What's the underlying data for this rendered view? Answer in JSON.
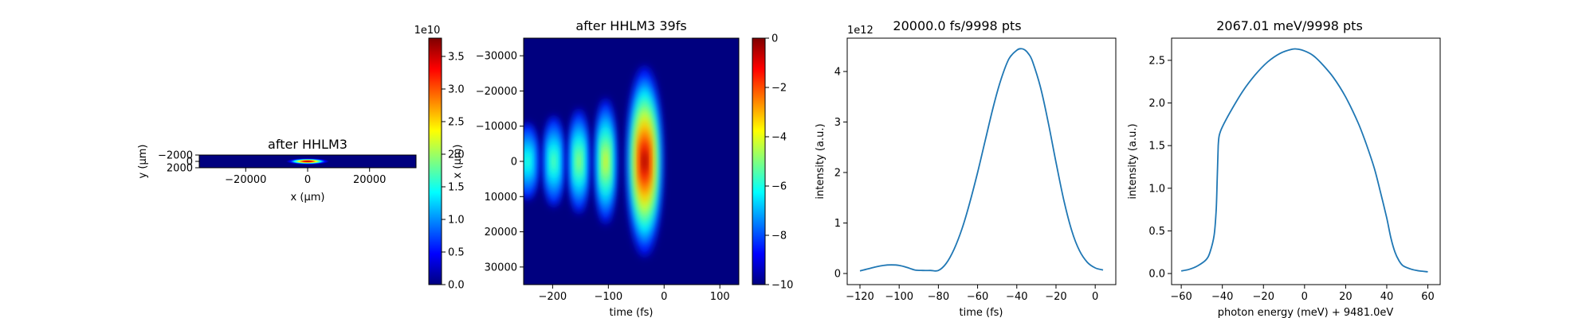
{
  "colors": {
    "line": "#1f77b4",
    "jet": [
      "#00007f",
      "#0000ff",
      "#007fff",
      "#00ffff",
      "#7fff7f",
      "#ffff00",
      "#ff7f00",
      "#ff0000",
      "#7f0000"
    ]
  },
  "chart_data": [
    {
      "type": "heatmap",
      "title": "after HHLM3",
      "xlabel": "x ($\\mu$m)",
      "ylabel": "y ($\\mu$m)",
      "xlim": [
        -35000,
        35000
      ],
      "ylim": [
        2000,
        -2000
      ],
      "x_ticks": [
        -20000,
        0,
        20000
      ],
      "y_ticks": [
        -2000,
        0,
        2000
      ],
      "x_tick_labels": [
        "−20000",
        "0",
        "20000"
      ],
      "y_tick_labels": [
        "−2000",
        "0",
        "2000"
      ],
      "spot": {
        "center_x": 0,
        "center_y": 0,
        "fwhm_x": 6000,
        "fwhm_y": 300
      },
      "colorbar": {
        "range": [
          0,
          37800000000
        ],
        "ticks": [
          0,
          5000000000,
          10000000000,
          15000000000,
          20000000000,
          25000000000,
          30000000000,
          35000000000
        ],
        "tick_labels": [
          "0.0",
          "0.5",
          "1.0",
          "1.5",
          "2.0",
          "2.5",
          "3.0",
          "3.5"
        ],
        "offset_text": "1e10"
      }
    },
    {
      "type": "heatmap",
      "title": "after HHLM3 39fs",
      "xlabel": "time (fs)",
      "ylabel": "x ($\\mu$m)",
      "xlim": [
        -252,
        134
      ],
      "ylim": [
        35000,
        -35000
      ],
      "x_ticks": [
        -200,
        -100,
        0,
        100
      ],
      "y_ticks": [
        -30000,
        -20000,
        -10000,
        0,
        10000,
        20000,
        30000
      ],
      "x_tick_labels": [
        "−200",
        "−100",
        "0",
        "100"
      ],
      "y_tick_labels": [
        "−30000",
        "−20000",
        "−10000",
        "0",
        "10000",
        "20000",
        "30000"
      ],
      "lobes": [
        {
          "t": -245,
          "width_t": 18,
          "half_x": 11000,
          "peak": -5.5
        },
        {
          "t": -198,
          "width_t": 17,
          "half_x": 13000,
          "peak": -5.0
        },
        {
          "t": -153,
          "width_t": 17,
          "half_x": 15000,
          "peak": -4.3
        },
        {
          "t": -105,
          "width_t": 18,
          "half_x": 18000,
          "peak": -3.5
        },
        {
          "t": -35,
          "width_t": 32,
          "half_x": 27000,
          "peak": 0
        }
      ],
      "colorbar": {
        "range": [
          -10,
          0
        ],
        "ticks": [
          0,
          -2,
          -4,
          -6,
          -8,
          -10
        ],
        "tick_labels": [
          "0",
          "−2",
          "−4",
          "−6",
          "−8",
          "−10"
        ]
      }
    },
    {
      "type": "line",
      "title": "20000.0 fs/9998 pts",
      "xlabel": "time (fs)",
      "ylabel": "intensity (a.u.)",
      "xlim": [
        -126.5,
        10.5
      ],
      "ylim": [
        -0.22,
        4.66
      ],
      "x_ticks": [
        -120,
        -100,
        -80,
        -60,
        -40,
        -20,
        0
      ],
      "x_tick_labels": [
        "−120",
        "−100",
        "−80",
        "−60",
        "−40",
        "−20",
        "0"
      ],
      "y_ticks": [
        0,
        1,
        2,
        3,
        4
      ],
      "y_tick_labels": [
        "0",
        "1",
        "2",
        "3",
        "4"
      ],
      "offset_text": "1e12",
      "x": [
        -120,
        -116,
        -112,
        -108,
        -104,
        -100,
        -96,
        -92,
        -88,
        -84,
        -80,
        -76,
        -72,
        -68,
        -64,
        -60,
        -56,
        -52,
        -48,
        -44,
        -40,
        -38,
        -36,
        -34,
        -32,
        -28,
        -24,
        -20,
        -16,
        -12,
        -8,
        -4,
        0,
        4
      ],
      "y": [
        0.05,
        0.09,
        0.13,
        0.16,
        0.17,
        0.16,
        0.12,
        0.07,
        0.06,
        0.06,
        0.06,
        0.2,
        0.48,
        0.88,
        1.4,
        2.0,
        2.65,
        3.3,
        3.85,
        4.25,
        4.42,
        4.45,
        4.43,
        4.35,
        4.2,
        3.7,
        3.0,
        2.2,
        1.45,
        0.85,
        0.45,
        0.22,
        0.11,
        0.07
      ]
    },
    {
      "type": "line",
      "title": "2067.01 meV/9998 pts",
      "xlabel": "photon energy (meV) + 9481.0eV",
      "ylabel": "intensity (a.u.)",
      "xlim": [
        -64.7,
        66
      ],
      "ylim": [
        -0.13,
        2.76
      ],
      "x_ticks": [
        -60,
        -40,
        -20,
        0,
        20,
        40,
        60
      ],
      "x_tick_labels": [
        "−60",
        "−40",
        "−20",
        "0",
        "20",
        "40",
        "60"
      ],
      "y_ticks": [
        0.0,
        0.5,
        1.0,
        1.5,
        2.0,
        2.5
      ],
      "y_tick_labels": [
        "0.0",
        "0.5",
        "1.0",
        "1.5",
        "2.0",
        "2.5"
      ],
      "x": [
        -60,
        -56,
        -52,
        -48,
        -46,
        -44,
        -43,
        -42.5,
        -42,
        -41.5,
        -40,
        -36,
        -30,
        -24,
        -18,
        -12,
        -6,
        -3,
        0,
        4,
        8,
        14,
        20,
        26,
        30,
        34,
        37,
        40,
        42,
        44,
        46,
        48,
        52,
        56,
        60
      ],
      "y": [
        0.03,
        0.05,
        0.09,
        0.16,
        0.25,
        0.45,
        0.75,
        1.1,
        1.5,
        1.62,
        1.72,
        1.9,
        2.14,
        2.33,
        2.48,
        2.58,
        2.63,
        2.63,
        2.61,
        2.56,
        2.47,
        2.3,
        2.07,
        1.77,
        1.52,
        1.23,
        0.95,
        0.65,
        0.42,
        0.25,
        0.15,
        0.09,
        0.05,
        0.03,
        0.02
      ]
    }
  ]
}
